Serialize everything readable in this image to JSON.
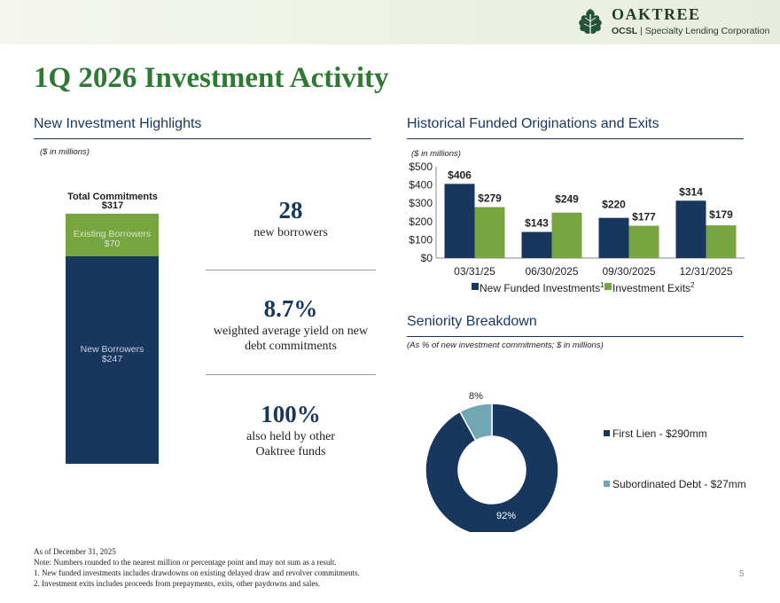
{
  "header": {
    "brand": "OAKTREE",
    "ticker": "OCSL",
    "separator": " | ",
    "subtitle": "Specialty Lending Corporation"
  },
  "title": "1Q 2026 Investment Activity",
  "left_section": {
    "title": "New Investment Highlights",
    "note": "($ in millions)",
    "stacked": {
      "total_label": "Total Commitments",
      "total_value": "$317",
      "segments": [
        {
          "label": "Existing Borrowers",
          "value": "$70",
          "amount": 70
        },
        {
          "label": "New Borrowers",
          "value": "$247",
          "amount": 247
        }
      ]
    },
    "stats": [
      {
        "value": "28",
        "lines": [
          "new borrowers"
        ]
      },
      {
        "value": "8.7%",
        "lines": [
          "weighted average yield on new",
          "debt commitments"
        ]
      },
      {
        "value": "100%",
        "lines": [
          "also held by other",
          "Oaktree funds"
        ]
      }
    ]
  },
  "right_top": {
    "title": "Historical Funded Originations and Exits",
    "note": "($ in millions)",
    "legend": [
      {
        "name": "New Funded Investments",
        "sup": "1"
      },
      {
        "name": "Investment Exits",
        "sup": "2"
      }
    ]
  },
  "right_bottom": {
    "title": "Seniority Breakdown",
    "note": "(As % of new investment commitments; $ in millions)",
    "donut_labels": [
      "8%",
      "92%"
    ],
    "legend": [
      "First Lien - $290mm",
      "Subordinated Debt - $27mm"
    ]
  },
  "chart_data": [
    {
      "type": "bar",
      "title": "Historical Funded Originations and Exits",
      "categories": [
        "03/31/25",
        "06/30/2025",
        "09/30/2025",
        "12/31/2025"
      ],
      "series": [
        {
          "name": "New Funded Investments",
          "values": [
            406,
            143,
            220,
            314
          ],
          "labels": [
            "$406",
            "$143",
            "$220",
            "$314"
          ],
          "color": "#17375e"
        },
        {
          "name": "Investment Exits",
          "values": [
            279,
            249,
            177,
            179
          ],
          "labels": [
            "$279",
            "$249",
            "$177",
            "$179"
          ],
          "color": "#77a640"
        }
      ],
      "yticks": [
        "$0",
        "$100",
        "$200",
        "$300",
        "$400",
        "$500"
      ],
      "ylim": [
        0,
        500
      ],
      "xlabel": "",
      "ylabel": ""
    },
    {
      "type": "pie",
      "title": "Seniority Breakdown",
      "categories": [
        "First Lien",
        "Subordinated Debt"
      ],
      "values": [
        92,
        8
      ],
      "amounts": [
        290,
        27
      ],
      "colors": [
        "#17375e",
        "#6fa7b3"
      ]
    }
  ],
  "footer": {
    "as_of": "As of December 31, 2025",
    "notes": [
      "Note: Numbers rounded to the nearest million or percentage point and may not sum as a result.",
      "1.   New funded investments includes drawdowns on existing delayed draw and revolver commitments.",
      "2.   Investment exits includes proceeds from prepayments, exits, other paydowns and sales."
    ],
    "page_number": "5"
  }
}
